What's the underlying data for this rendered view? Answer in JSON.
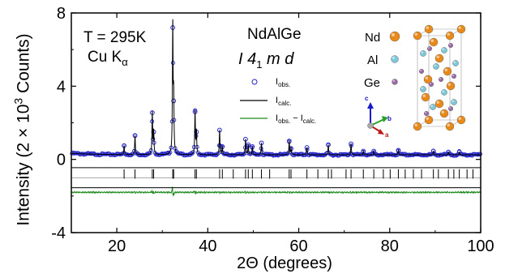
{
  "chart_data": {
    "type": "scatter",
    "title": "",
    "xlabel": "2Θ (degrees)",
    "ylabel": {
      "prefix": "Intensity (2 × 10",
      "exp": "3",
      "suffix": " Counts)"
    },
    "xlim": [
      10,
      100
    ],
    "ylim": [
      -4,
      8
    ],
    "xticks": [
      "20",
      "40",
      "60",
      "80",
      "100"
    ],
    "yticks": [
      "-4",
      "0",
      "4",
      "8"
    ],
    "conditions": {
      "temperature": "T = 295K",
      "radiation_main": "Cu K",
      "radiation_sub": "α"
    },
    "compound": "NdAlGe",
    "space_group": {
      "a": "I 4",
      "sub": "1",
      "b": " m d"
    },
    "legend": [
      {
        "label_main": "I",
        "label_sub": "obs.",
        "marker": "open-circle",
        "color": "#2323c8"
      },
      {
        "label_main": "I",
        "label_sub": "calc.",
        "marker": "line",
        "color": "#000000"
      },
      {
        "label_main": "I",
        "label_sub": "obs.",
        "label_mid": " − I",
        "label_sub2": "calc.",
        "marker": "line",
        "color": "#1a8a1a"
      }
    ],
    "structure_legend": [
      {
        "label": "Nd",
        "color": "#e8891a"
      },
      {
        "label": "Al",
        "color": "#7cc8d8"
      },
      {
        "label": "Ge",
        "color": "#9a6aa8"
      }
    ],
    "axes_labels": {
      "c": "c",
      "b": "b",
      "a": "a"
    },
    "background_level": 0.25,
    "diff_baseline": -1.8,
    "bragg_row_level": -0.95,
    "peaks": [
      {
        "x": 21.6,
        "y": 0.75
      },
      {
        "x": 24.0,
        "y": 1.3
      },
      {
        "x": 27.8,
        "y": 2.55
      },
      {
        "x": 28.1,
        "y": 1.5
      },
      {
        "x": 32.3,
        "y": 7.2
      },
      {
        "x": 32.5,
        "y": 3.2
      },
      {
        "x": 37.2,
        "y": 2.6
      },
      {
        "x": 37.5,
        "y": 1.5
      },
      {
        "x": 42.6,
        "y": 1.6
      },
      {
        "x": 43.2,
        "y": 0.7
      },
      {
        "x": 48.3,
        "y": 1.1
      },
      {
        "x": 48.9,
        "y": 0.8
      },
      {
        "x": 49.8,
        "y": 0.7
      },
      {
        "x": 51.8,
        "y": 0.9
      },
      {
        "x": 57.9,
        "y": 1.0
      },
      {
        "x": 58.3,
        "y": 0.6
      },
      {
        "x": 61.8,
        "y": 0.65
      },
      {
        "x": 66.5,
        "y": 0.8
      },
      {
        "x": 71.5,
        "y": 0.85
      },
      {
        "x": 74.2,
        "y": 0.45
      },
      {
        "x": 76.5,
        "y": 0.45
      },
      {
        "x": 81.9,
        "y": 0.5
      },
      {
        "x": 89.6,
        "y": 0.45
      },
      {
        "x": 92.9,
        "y": 0.4
      },
      {
        "x": 95.3,
        "y": 0.4
      }
    ],
    "bragg_positions": [
      21.6,
      24.0,
      27.8,
      28.1,
      32.3,
      32.5,
      37.2,
      37.5,
      42.6,
      43.2,
      45.6,
      48.3,
      48.9,
      49.8,
      51.8,
      53.6,
      57.9,
      58.3,
      61.8,
      64.2,
      66.5,
      67.2,
      70.4,
      71.5,
      74.2,
      76.5,
      78.6,
      80.1,
      81.9,
      83.4,
      85.2,
      87.0,
      89.6,
      90.7,
      92.9,
      94.1,
      95.3,
      97.0,
      98.3
    ]
  }
}
